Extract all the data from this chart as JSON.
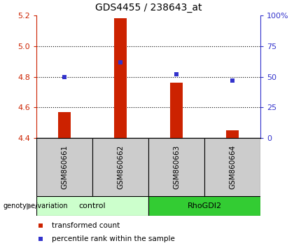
{
  "title": "GDS4455 / 238643_at",
  "samples": [
    "GSM860661",
    "GSM860662",
    "GSM860663",
    "GSM860664"
  ],
  "bar_values": [
    4.57,
    5.18,
    4.76,
    4.45
  ],
  "bar_bottom": 4.4,
  "blue_values_pct": [
    50,
    62,
    52,
    47
  ],
  "ylim_left": [
    4.4,
    5.2
  ],
  "ylim_right": [
    0,
    100
  ],
  "yticks_left": [
    4.4,
    4.6,
    4.8,
    5.0,
    5.2
  ],
  "yticks_right": [
    0,
    25,
    50,
    75,
    100
  ],
  "ytick_labels_right": [
    "0",
    "25",
    "50",
    "75",
    "100%"
  ],
  "bar_color": "#cc2200",
  "blue_color": "#3333cc",
  "groups": [
    {
      "label": "control",
      "indices": [
        0,
        1
      ],
      "color": "#ccffcc"
    },
    {
      "label": "RhoGDI2",
      "indices": [
        2,
        3
      ],
      "color": "#33cc33"
    }
  ],
  "group_label": "genotype/variation",
  "legend_items": [
    {
      "color": "#cc2200",
      "label": "transformed count"
    },
    {
      "color": "#3333cc",
      "label": "percentile rank within the sample"
    }
  ],
  "bar_color_dark": "#cc2200",
  "sample_box_color": "#cccccc",
  "dotted_lines": [
    4.6,
    4.8,
    5.0
  ]
}
